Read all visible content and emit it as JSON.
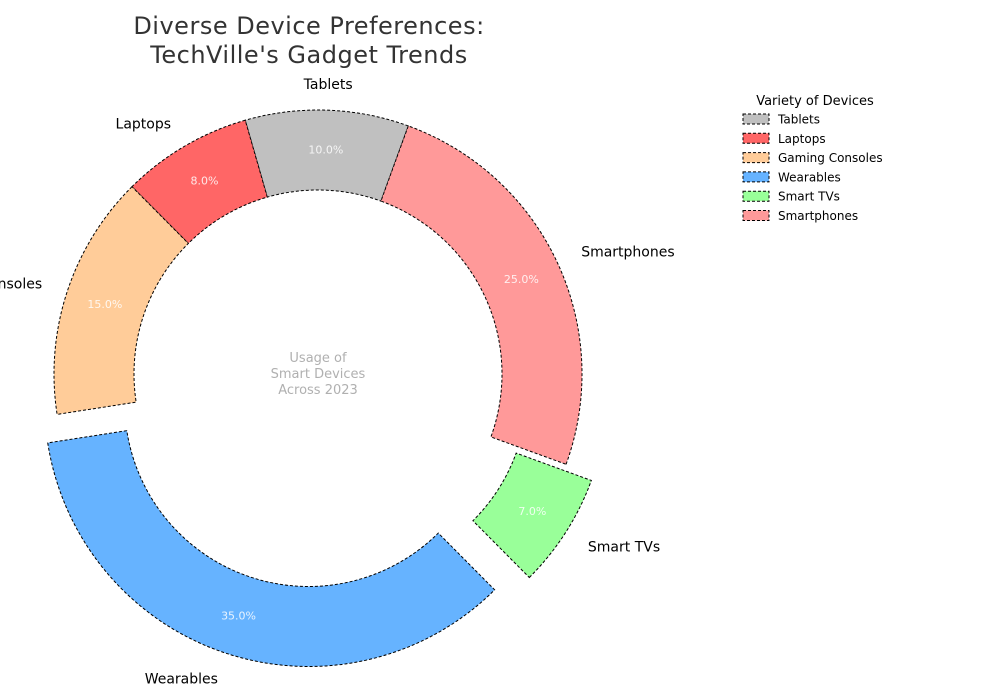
{
  "chart_data": {
    "type": "pie",
    "variant": "donut",
    "title": "Diverse Device Preferences:\nTechVille's Gadget Trends",
    "center_text": "Usage of\nSmart Devices\nAcross 2023",
    "legend_title": "Variety of Devices",
    "legend_position": "top-right",
    "start_angle_deg": 70,
    "direction": "counterclockwise",
    "slices": [
      {
        "label": "Tablets",
        "value": 10.0,
        "pct_label": "10.0%",
        "color": "#c0c0c0",
        "exploded": false
      },
      {
        "label": "Laptops",
        "value": 8.0,
        "pct_label": "8.0%",
        "color": "#ff6666",
        "exploded": false
      },
      {
        "label": "Gaming Consoles",
        "value": 15.0,
        "pct_label": "15.0%",
        "color": "#ffcc99",
        "exploded": false
      },
      {
        "label": "Wearables",
        "value": 35.0,
        "pct_label": "35.0%",
        "color": "#66b3ff",
        "exploded": true
      },
      {
        "label": "Smart TVs",
        "value": 7.0,
        "pct_label": "7.0%",
        "color": "#99ff99",
        "exploded": true
      },
      {
        "label": "Smartphones",
        "value": 25.0,
        "pct_label": "25.0%",
        "color": "#ff9999",
        "exploded": false
      }
    ]
  }
}
